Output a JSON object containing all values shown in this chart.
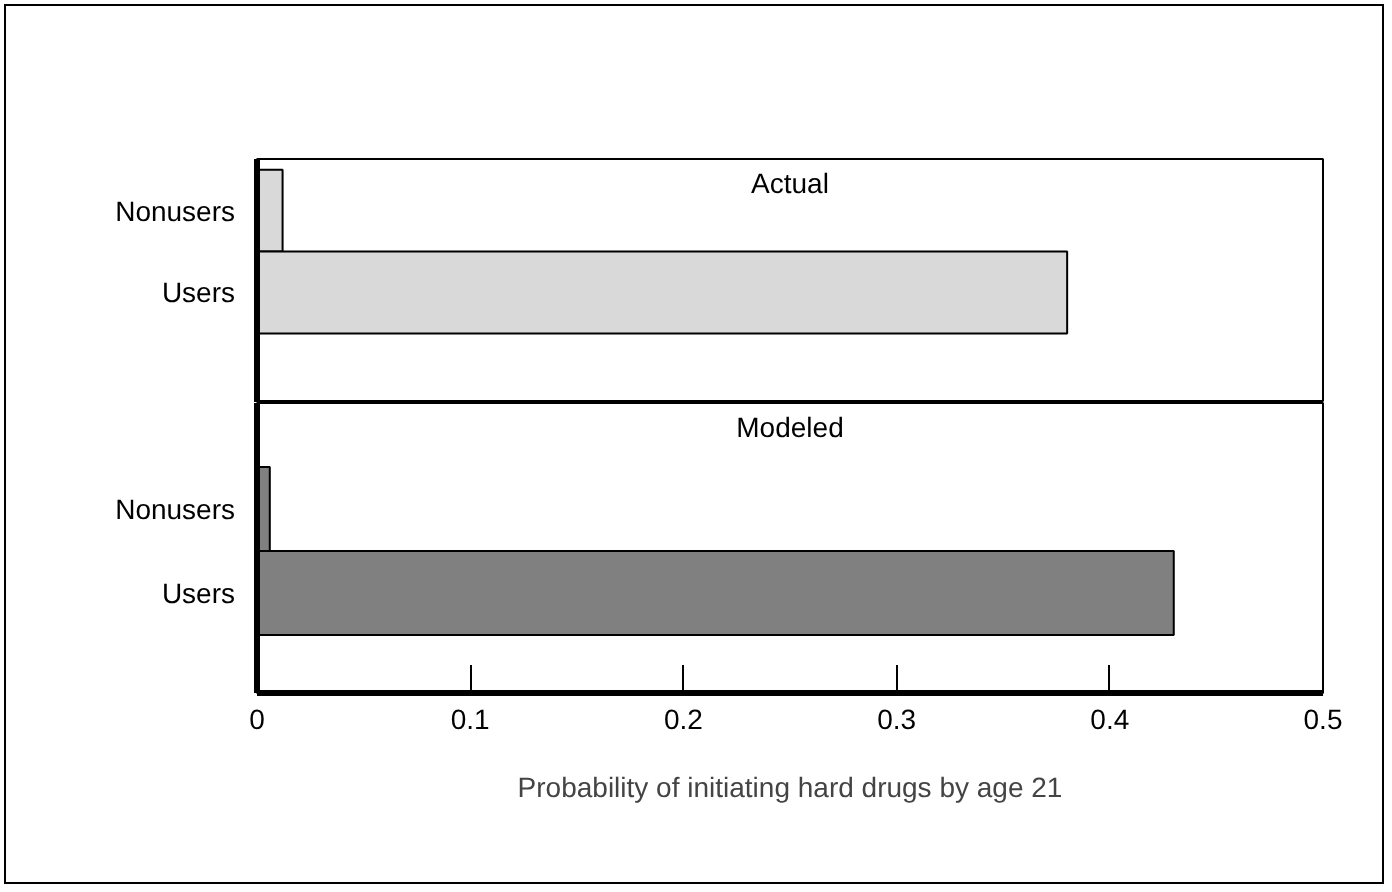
{
  "chart_data": [
    {
      "type": "bar",
      "orientation": "horizontal",
      "title": "Actual",
      "categories": [
        "Nonusers",
        "Users"
      ],
      "values": [
        0.012,
        0.38
      ],
      "color": "#d9d9d9",
      "xlim": [
        0,
        0.5
      ],
      "tick_labels": "y"
    },
    {
      "type": "bar",
      "orientation": "horizontal",
      "title": "Modeled",
      "categories": [
        "Nonusers",
        "Users"
      ],
      "values": [
        0.006,
        0.43
      ],
      "color": "#808080",
      "xlim": [
        0,
        0.5
      ],
      "xticks": [
        0,
        0.1,
        0.2,
        0.3,
        0.4,
        0.5
      ],
      "xlabel": "Probability of initiating hard drugs by age 21"
    }
  ]
}
